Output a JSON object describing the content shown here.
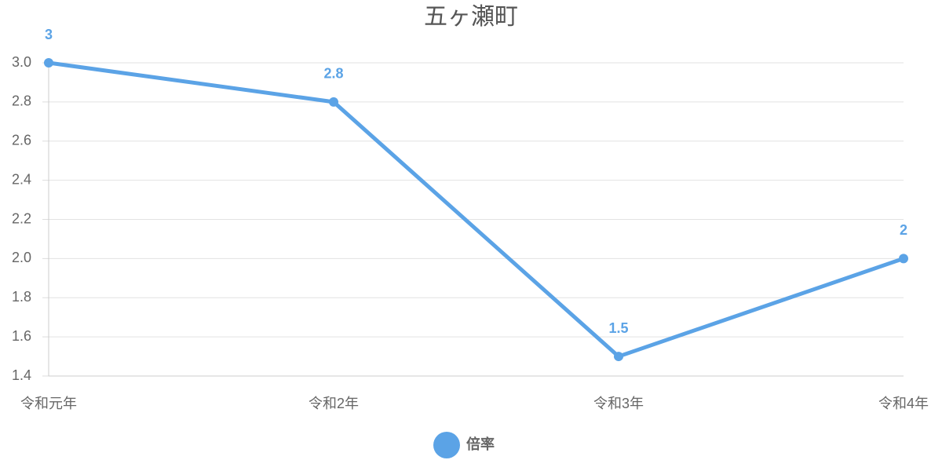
{
  "chart_data": {
    "type": "line",
    "title": "五ヶ瀬町",
    "categories": [
      "令和元年",
      "令和2年",
      "令和3年",
      "令和4年"
    ],
    "series": [
      {
        "name": "倍率",
        "color": "#5ba3e6",
        "values": [
          3,
          2.8,
          1.5,
          2
        ]
      }
    ],
    "ylim": [
      1.4,
      3.0
    ],
    "yticks": [
      1.4,
      1.6,
      1.8,
      {
        "value": 2.0,
        "label": "2.0"
      },
      2.2,
      2.4,
      2.6,
      2.8,
      {
        "value": 3.0,
        "label": "3.0"
      }
    ],
    "grid": true
  }
}
